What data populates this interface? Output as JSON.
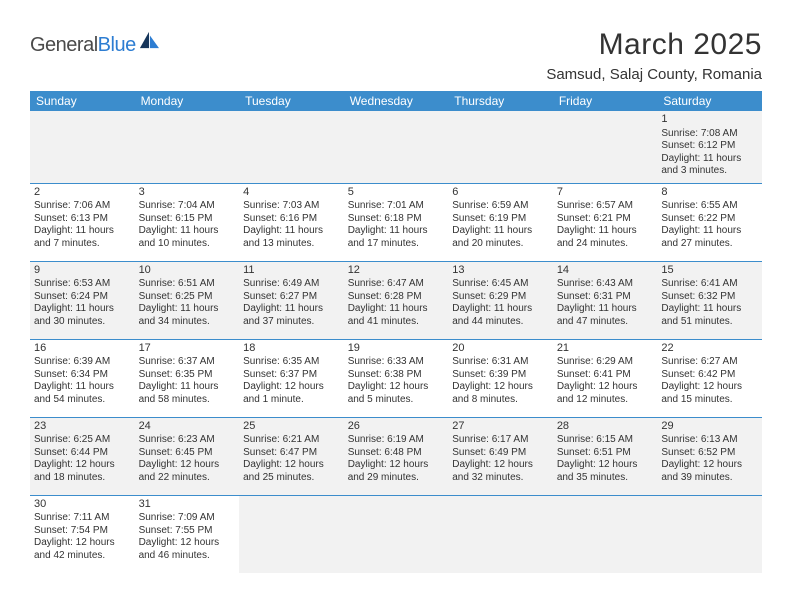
{
  "brand": {
    "part1": "General",
    "part2": "Blue"
  },
  "title": "March 2025",
  "location": "Samsud, Salaj County, Romania",
  "colors": {
    "header_bg": "#3c8dcc",
    "header_text": "#ffffff",
    "row_alt_bg": "#f2f2f2",
    "border": "#3c8dcc",
    "text": "#333333",
    "logo_gray": "#4a4a4a",
    "logo_blue": "#2d7dd2",
    "page_bg": "#ffffff"
  },
  "weekdays": [
    "Sunday",
    "Monday",
    "Tuesday",
    "Wednesday",
    "Thursday",
    "Friday",
    "Saturday"
  ],
  "weeks": [
    [
      null,
      null,
      null,
      null,
      null,
      null,
      {
        "n": "1",
        "sr": "Sunrise: 7:08 AM",
        "ss": "Sunset: 6:12 PM",
        "d1": "Daylight: 11 hours",
        "d2": "and 3 minutes."
      }
    ],
    [
      {
        "n": "2",
        "sr": "Sunrise: 7:06 AM",
        "ss": "Sunset: 6:13 PM",
        "d1": "Daylight: 11 hours",
        "d2": "and 7 minutes."
      },
      {
        "n": "3",
        "sr": "Sunrise: 7:04 AM",
        "ss": "Sunset: 6:15 PM",
        "d1": "Daylight: 11 hours",
        "d2": "and 10 minutes."
      },
      {
        "n": "4",
        "sr": "Sunrise: 7:03 AM",
        "ss": "Sunset: 6:16 PM",
        "d1": "Daylight: 11 hours",
        "d2": "and 13 minutes."
      },
      {
        "n": "5",
        "sr": "Sunrise: 7:01 AM",
        "ss": "Sunset: 6:18 PM",
        "d1": "Daylight: 11 hours",
        "d2": "and 17 minutes."
      },
      {
        "n": "6",
        "sr": "Sunrise: 6:59 AM",
        "ss": "Sunset: 6:19 PM",
        "d1": "Daylight: 11 hours",
        "d2": "and 20 minutes."
      },
      {
        "n": "7",
        "sr": "Sunrise: 6:57 AM",
        "ss": "Sunset: 6:21 PM",
        "d1": "Daylight: 11 hours",
        "d2": "and 24 minutes."
      },
      {
        "n": "8",
        "sr": "Sunrise: 6:55 AM",
        "ss": "Sunset: 6:22 PM",
        "d1": "Daylight: 11 hours",
        "d2": "and 27 minutes."
      }
    ],
    [
      {
        "n": "9",
        "sr": "Sunrise: 6:53 AM",
        "ss": "Sunset: 6:24 PM",
        "d1": "Daylight: 11 hours",
        "d2": "and 30 minutes."
      },
      {
        "n": "10",
        "sr": "Sunrise: 6:51 AM",
        "ss": "Sunset: 6:25 PM",
        "d1": "Daylight: 11 hours",
        "d2": "and 34 minutes."
      },
      {
        "n": "11",
        "sr": "Sunrise: 6:49 AM",
        "ss": "Sunset: 6:27 PM",
        "d1": "Daylight: 11 hours",
        "d2": "and 37 minutes."
      },
      {
        "n": "12",
        "sr": "Sunrise: 6:47 AM",
        "ss": "Sunset: 6:28 PM",
        "d1": "Daylight: 11 hours",
        "d2": "and 41 minutes."
      },
      {
        "n": "13",
        "sr": "Sunrise: 6:45 AM",
        "ss": "Sunset: 6:29 PM",
        "d1": "Daylight: 11 hours",
        "d2": "and 44 minutes."
      },
      {
        "n": "14",
        "sr": "Sunrise: 6:43 AM",
        "ss": "Sunset: 6:31 PM",
        "d1": "Daylight: 11 hours",
        "d2": "and 47 minutes."
      },
      {
        "n": "15",
        "sr": "Sunrise: 6:41 AM",
        "ss": "Sunset: 6:32 PM",
        "d1": "Daylight: 11 hours",
        "d2": "and 51 minutes."
      }
    ],
    [
      {
        "n": "16",
        "sr": "Sunrise: 6:39 AM",
        "ss": "Sunset: 6:34 PM",
        "d1": "Daylight: 11 hours",
        "d2": "and 54 minutes."
      },
      {
        "n": "17",
        "sr": "Sunrise: 6:37 AM",
        "ss": "Sunset: 6:35 PM",
        "d1": "Daylight: 11 hours",
        "d2": "and 58 minutes."
      },
      {
        "n": "18",
        "sr": "Sunrise: 6:35 AM",
        "ss": "Sunset: 6:37 PM",
        "d1": "Daylight: 12 hours",
        "d2": "and 1 minute."
      },
      {
        "n": "19",
        "sr": "Sunrise: 6:33 AM",
        "ss": "Sunset: 6:38 PM",
        "d1": "Daylight: 12 hours",
        "d2": "and 5 minutes."
      },
      {
        "n": "20",
        "sr": "Sunrise: 6:31 AM",
        "ss": "Sunset: 6:39 PM",
        "d1": "Daylight: 12 hours",
        "d2": "and 8 minutes."
      },
      {
        "n": "21",
        "sr": "Sunrise: 6:29 AM",
        "ss": "Sunset: 6:41 PM",
        "d1": "Daylight: 12 hours",
        "d2": "and 12 minutes."
      },
      {
        "n": "22",
        "sr": "Sunrise: 6:27 AM",
        "ss": "Sunset: 6:42 PM",
        "d1": "Daylight: 12 hours",
        "d2": "and 15 minutes."
      }
    ],
    [
      {
        "n": "23",
        "sr": "Sunrise: 6:25 AM",
        "ss": "Sunset: 6:44 PM",
        "d1": "Daylight: 12 hours",
        "d2": "and 18 minutes."
      },
      {
        "n": "24",
        "sr": "Sunrise: 6:23 AM",
        "ss": "Sunset: 6:45 PM",
        "d1": "Daylight: 12 hours",
        "d2": "and 22 minutes."
      },
      {
        "n": "25",
        "sr": "Sunrise: 6:21 AM",
        "ss": "Sunset: 6:47 PM",
        "d1": "Daylight: 12 hours",
        "d2": "and 25 minutes."
      },
      {
        "n": "26",
        "sr": "Sunrise: 6:19 AM",
        "ss": "Sunset: 6:48 PM",
        "d1": "Daylight: 12 hours",
        "d2": "and 29 minutes."
      },
      {
        "n": "27",
        "sr": "Sunrise: 6:17 AM",
        "ss": "Sunset: 6:49 PM",
        "d1": "Daylight: 12 hours",
        "d2": "and 32 minutes."
      },
      {
        "n": "28",
        "sr": "Sunrise: 6:15 AM",
        "ss": "Sunset: 6:51 PM",
        "d1": "Daylight: 12 hours",
        "d2": "and 35 minutes."
      },
      {
        "n": "29",
        "sr": "Sunrise: 6:13 AM",
        "ss": "Sunset: 6:52 PM",
        "d1": "Daylight: 12 hours",
        "d2": "and 39 minutes."
      }
    ],
    [
      {
        "n": "30",
        "sr": "Sunrise: 7:11 AM",
        "ss": "Sunset: 7:54 PM",
        "d1": "Daylight: 12 hours",
        "d2": "and 42 minutes."
      },
      {
        "n": "31",
        "sr": "Sunrise: 7:09 AM",
        "ss": "Sunset: 7:55 PM",
        "d1": "Daylight: 12 hours",
        "d2": "and 46 minutes."
      },
      null,
      null,
      null,
      null,
      null
    ]
  ]
}
